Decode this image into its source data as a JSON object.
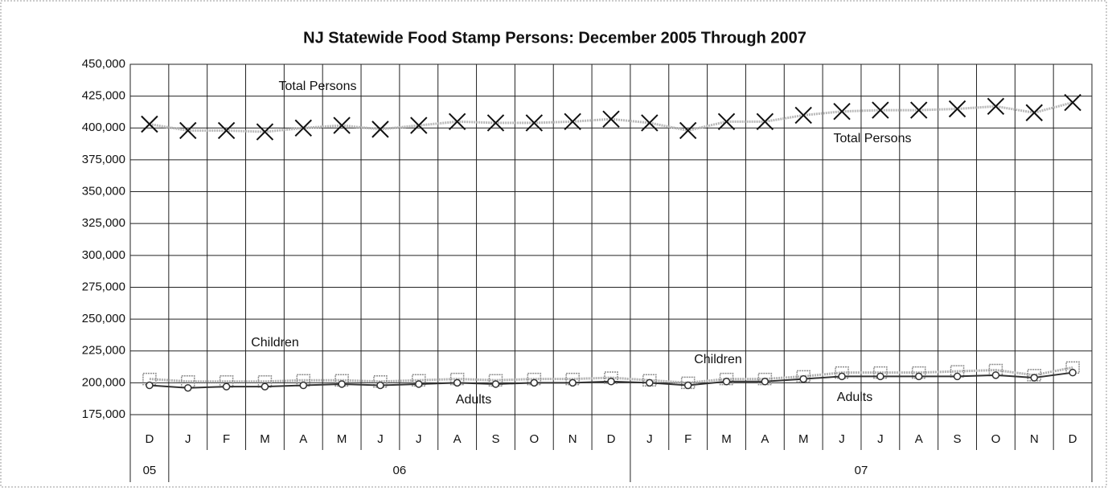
{
  "chart_data": {
    "type": "line",
    "title": "NJ Statewide Food Stamp Persons: December 2005 Through 2007",
    "categories": [
      "D",
      "J",
      "F",
      "M",
      "A",
      "M",
      "J",
      "J",
      "A",
      "S",
      "O",
      "N",
      "D",
      "J",
      "F",
      "M",
      "A",
      "M",
      "J",
      "J",
      "A",
      "S",
      "O",
      "N",
      "D"
    ],
    "x_groups": [
      "05",
      "06",
      null,
      null,
      null,
      null,
      null,
      null,
      null,
      null,
      null,
      null,
      null,
      "07",
      null,
      null,
      null,
      null,
      null,
      null,
      null,
      null,
      null,
      null,
      null
    ],
    "ylim": [
      175000,
      450000
    ],
    "yticks": [
      {
        "value": 175000,
        "label": "175,000"
      },
      {
        "value": 200000,
        "label": "200,000"
      },
      {
        "value": 225000,
        "label": "225,000"
      },
      {
        "value": 250000,
        "label": "250,000"
      },
      {
        "value": 275000,
        "label": "275,000"
      },
      {
        "value": 300000,
        "label": "300,000"
      },
      {
        "value": 325000,
        "label": "325,000"
      },
      {
        "value": 350000,
        "label": "350,000"
      },
      {
        "value": 375000,
        "label": "375,000"
      },
      {
        "value": 400000,
        "label": "400,000"
      },
      {
        "value": 425000,
        "label": "425,000"
      },
      {
        "value": 450000,
        "label": "450,000"
      }
    ],
    "grid": true,
    "series": [
      {
        "name": "Total Persons",
        "color": "#111111",
        "line_color": "#b8b8b8",
        "marker": "x",
        "values": [
          403000,
          398000,
          398000,
          397000,
          400000,
          402000,
          399000,
          402000,
          405000,
          404000,
          404000,
          405000,
          407000,
          404000,
          398000,
          405000,
          405000,
          410000,
          413000,
          414000,
          414000,
          415000,
          417000,
          412000,
          420000
        ]
      },
      {
        "name": "Children",
        "color": "#8a8a8a",
        "line_color": "#b0b0b0",
        "marker": "square",
        "values": [
          203000,
          201000,
          201000,
          201000,
          202000,
          202000,
          201000,
          202000,
          203000,
          202000,
          203000,
          203000,
          204000,
          202000,
          200000,
          203000,
          203000,
          205000,
          208000,
          208000,
          208000,
          209000,
          210000,
          206000,
          212000
        ]
      },
      {
        "name": "Adults",
        "color": "#333333",
        "line_color": "#333333",
        "marker": "circle",
        "values": [
          198000,
          196000,
          197000,
          197000,
          198000,
          199000,
          198000,
          199000,
          200000,
          199000,
          200000,
          200000,
          201000,
          200000,
          198000,
          201000,
          201000,
          203000,
          205000,
          205000,
          205000,
          205000,
          206000,
          204000,
          208000
        ]
      }
    ],
    "annotations": [
      "Total Persons",
      "Total Persons",
      "Children",
      "Children",
      "Adults",
      "Adults"
    ]
  }
}
